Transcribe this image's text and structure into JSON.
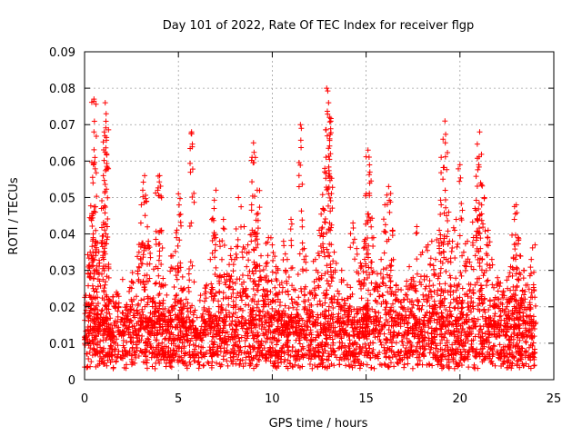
{
  "chart_data": {
    "type": "scatter",
    "title": "Day 101 of 2022, Rate Of TEC Index for receiver flgp",
    "xlabel": "GPS time / hours",
    "ylabel": "ROTI / TECUs",
    "xlim": [
      0,
      25
    ],
    "ylim": [
      0,
      0.09
    ],
    "x_ticks": [
      0,
      5,
      10,
      15,
      20,
      25
    ],
    "x_tick_labels": [
      "0",
      "5",
      "10",
      "15",
      "20",
      "25"
    ],
    "y_ticks": [
      0,
      0.01,
      0.02,
      0.03,
      0.04,
      0.05,
      0.06,
      0.07,
      0.08,
      0.09
    ],
    "y_tick_labels": [
      "0",
      "0.01",
      "0.02",
      "0.03",
      "0.04",
      "0.05",
      "0.06",
      "0.07",
      "0.08",
      "0.09"
    ],
    "grid": true,
    "marker": "+",
    "marker_color": "#ff0000",
    "series": [
      {
        "name": "ROTI",
        "x": [
          0.0,
          0.1,
          0.2,
          0.3,
          0.4,
          0.45,
          0.5,
          0.5,
          0.55,
          0.6,
          0.7,
          0.8,
          0.9,
          1.0,
          1.05,
          1.1,
          1.15,
          1.2,
          1.3,
          1.4,
          1.5,
          1.7,
          2.0,
          2.3,
          2.5,
          2.7,
          2.9,
          3.0,
          3.1,
          3.2,
          3.3,
          3.4,
          3.6,
          3.8,
          3.9,
          4.0,
          4.1,
          4.3,
          4.5,
          4.7,
          4.9,
          5.0,
          5.1,
          5.3,
          5.5,
          5.7,
          5.9,
          6.0,
          6.3,
          6.5,
          6.7,
          6.9,
          7.0,
          7.2,
          7.4,
          7.6,
          7.8,
          8.0,
          8.2,
          8.5,
          8.7,
          8.9,
          9.0,
          9.1,
          9.2,
          9.4,
          9.6,
          9.8,
          10.0,
          10.2,
          10.4,
          10.6,
          10.8,
          11.0,
          11.3,
          11.5,
          11.7,
          12.0,
          12.3,
          12.5,
          12.7,
          12.8,
          12.9,
          13.0,
          13.05,
          13.1,
          13.3,
          13.5,
          13.7,
          14.0,
          14.3,
          14.5,
          14.7,
          14.9,
          15.0,
          15.1,
          15.2,
          15.4,
          15.6,
          15.8,
          16.0,
          16.2,
          16.4,
          16.6,
          16.8,
          17.0,
          17.3,
          17.5,
          17.7,
          18.0,
          18.3,
          18.5,
          18.7,
          18.9,
          19.0,
          19.1,
          19.2,
          19.4,
          19.6,
          19.8,
          20.0,
          20.2,
          20.4,
          20.6,
          20.8,
          21.0,
          21.05,
          21.1,
          21.3,
          21.5,
          21.7,
          22.0,
          22.3,
          22.5,
          22.7,
          22.9,
          23.0,
          23.1,
          23.2,
          23.4,
          23.6,
          23.8,
          24.0
        ],
        "y": [
          0.011,
          0.021,
          0.029,
          0.035,
          0.045,
          0.054,
          0.068,
          0.077,
          0.061,
          0.038,
          0.018,
          0.032,
          0.047,
          0.056,
          0.068,
          0.076,
          0.073,
          0.042,
          0.022,
          0.015,
          0.012,
          0.024,
          0.013,
          0.018,
          0.027,
          0.014,
          0.035,
          0.043,
          0.052,
          0.056,
          0.049,
          0.038,
          0.022,
          0.031,
          0.052,
          0.056,
          0.041,
          0.026,
          0.019,
          0.034,
          0.039,
          0.051,
          0.032,
          0.025,
          0.021,
          0.068,
          0.014,
          0.012,
          0.018,
          0.026,
          0.033,
          0.047,
          0.052,
          0.038,
          0.044,
          0.029,
          0.036,
          0.033,
          0.05,
          0.042,
          0.037,
          0.048,
          0.065,
          0.061,
          0.052,
          0.034,
          0.028,
          0.039,
          0.037,
          0.031,
          0.026,
          0.038,
          0.033,
          0.044,
          0.021,
          0.07,
          0.036,
          0.024,
          0.033,
          0.041,
          0.047,
          0.058,
          0.08,
          0.076,
          0.072,
          0.062,
          0.035,
          0.022,
          0.03,
          0.026,
          0.043,
          0.036,
          0.032,
          0.038,
          0.051,
          0.063,
          0.057,
          0.039,
          0.029,
          0.033,
          0.048,
          0.053,
          0.041,
          0.026,
          0.018,
          0.022,
          0.031,
          0.028,
          0.042,
          0.035,
          0.037,
          0.038,
          0.033,
          0.041,
          0.048,
          0.066,
          0.071,
          0.046,
          0.038,
          0.044,
          0.059,
          0.035,
          0.038,
          0.031,
          0.047,
          0.059,
          0.068,
          0.054,
          0.05,
          0.041,
          0.033,
          0.028,
          0.024,
          0.022,
          0.031,
          0.044,
          0.048,
          0.039,
          0.034,
          0.03,
          0.026,
          0.033,
          0.037
        ]
      }
    ],
    "dense_band": {
      "x_range": [
        0.0,
        24.0
      ],
      "y_floor_range": [
        0.003,
        0.008
      ],
      "y_core_range": [
        0.006,
        0.016
      ],
      "y_upper_range": [
        0.016,
        0.03
      ]
    }
  }
}
